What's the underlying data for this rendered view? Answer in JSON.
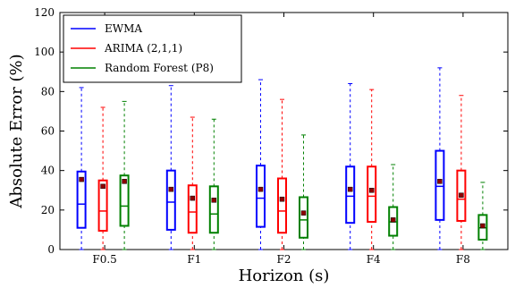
{
  "chart_data": {
    "type": "box",
    "title": "",
    "xlabel": "Horizon (s)",
    "ylabel": "Absolute Error (%)",
    "ylim": [
      0,
      120
    ],
    "yticks": [
      0,
      20,
      40,
      60,
      80,
      100,
      120
    ],
    "categories": [
      "F0.5",
      "F1",
      "F2",
      "F4",
      "F8"
    ],
    "legend_position": "top-left",
    "grid": false,
    "series": [
      {
        "name": "EWMA",
        "color": "#0000ff",
        "boxes": [
          {
            "whisker_low": 0,
            "q1": 11,
            "median": 23,
            "q3": 39.5,
            "whisker_high": 82,
            "mean": 35.5
          },
          {
            "whisker_low": 0,
            "q1": 10,
            "median": 24,
            "q3": 40,
            "whisker_high": 83,
            "mean": 30.5
          },
          {
            "whisker_low": 0,
            "q1": 11.5,
            "median": 26,
            "q3": 42.5,
            "whisker_high": 86,
            "mean": 30.5
          },
          {
            "whisker_low": 0,
            "q1": 13.5,
            "median": 27,
            "q3": 42,
            "whisker_high": 84,
            "mean": 30.5
          },
          {
            "whisker_low": 0,
            "q1": 15,
            "median": 32,
            "q3": 50,
            "whisker_high": 92,
            "mean": 34.5
          }
        ]
      },
      {
        "name": "ARIMA (2,1,1)",
        "color": "#ff0000",
        "boxes": [
          {
            "whisker_low": 0,
            "q1": 9.5,
            "median": 19.5,
            "q3": 35,
            "whisker_high": 72,
            "mean": 32
          },
          {
            "whisker_low": 0,
            "q1": 8.5,
            "median": 19,
            "q3": 32.5,
            "whisker_high": 67,
            "mean": 26
          },
          {
            "whisker_low": 0,
            "q1": 8.5,
            "median": 19.5,
            "q3": 36,
            "whisker_high": 76,
            "mean": 25.5
          },
          {
            "whisker_low": 0,
            "q1": 14,
            "median": 27,
            "q3": 42,
            "whisker_high": 81,
            "mean": 30
          },
          {
            "whisker_low": 0,
            "q1": 14.5,
            "median": 25.5,
            "q3": 40,
            "whisker_high": 78,
            "mean": 27.5
          }
        ]
      },
      {
        "name": "Random Forest (P8)",
        "color": "#008000",
        "boxes": [
          {
            "whisker_low": 0,
            "q1": 12,
            "median": 22,
            "q3": 37.5,
            "whisker_high": 75,
            "mean": 34.5
          },
          {
            "whisker_low": 0,
            "q1": 8.5,
            "median": 18,
            "q3": 32,
            "whisker_high": 66,
            "mean": 25
          },
          {
            "whisker_low": 0,
            "q1": 6,
            "median": 15,
            "q3": 26.5,
            "whisker_high": 58,
            "mean": 18.5
          },
          {
            "whisker_low": 0,
            "q1": 7,
            "median": 14,
            "q3": 21.5,
            "whisker_high": 43,
            "mean": 15
          },
          {
            "whisker_low": 0,
            "q1": 5,
            "median": 11,
            "q3": 17.5,
            "whisker_high": 34,
            "mean": 12
          }
        ]
      }
    ]
  }
}
